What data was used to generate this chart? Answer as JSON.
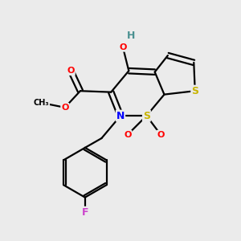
{
  "bg_color": "#ebebeb",
  "atom_colors": {
    "C": "#000000",
    "H": "#4a9090",
    "O": "#ff0000",
    "N": "#0000ff",
    "S": "#c8b400",
    "F": "#cc44cc"
  },
  "bond_color": "#000000",
  "bond_width": 1.6,
  "fig_size": [
    3.0,
    3.0
  ],
  "dpi": 100
}
